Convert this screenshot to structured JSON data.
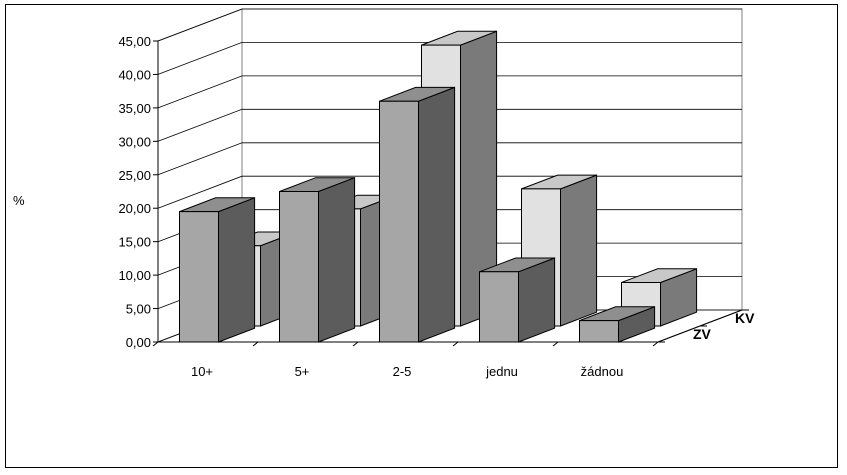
{
  "chart_data": {
    "type": "bar",
    "style": "3d-clustered-depth",
    "categories": [
      "10+",
      "5+",
      "2-5",
      "jednu",
      "žádnou"
    ],
    "series": [
      {
        "name": "ZV",
        "values": [
          19.5,
          22.5,
          36.0,
          10.5,
          3.2
        ],
        "color": "#a6a6a6"
      },
      {
        "name": "KV",
        "values": [
          12.0,
          17.5,
          42.0,
          20.5,
          6.5
        ],
        "color": "#e1e1e1"
      }
    ],
    "ylabel": "%",
    "ylim": [
      0,
      45
    ],
    "yticks": [
      "0,00",
      "5,00",
      "10,00",
      "15,00",
      "20,00",
      "25,00",
      "30,00",
      "35,00",
      "40,00",
      "45,00"
    ],
    "grid": true,
    "legend": "none"
  }
}
